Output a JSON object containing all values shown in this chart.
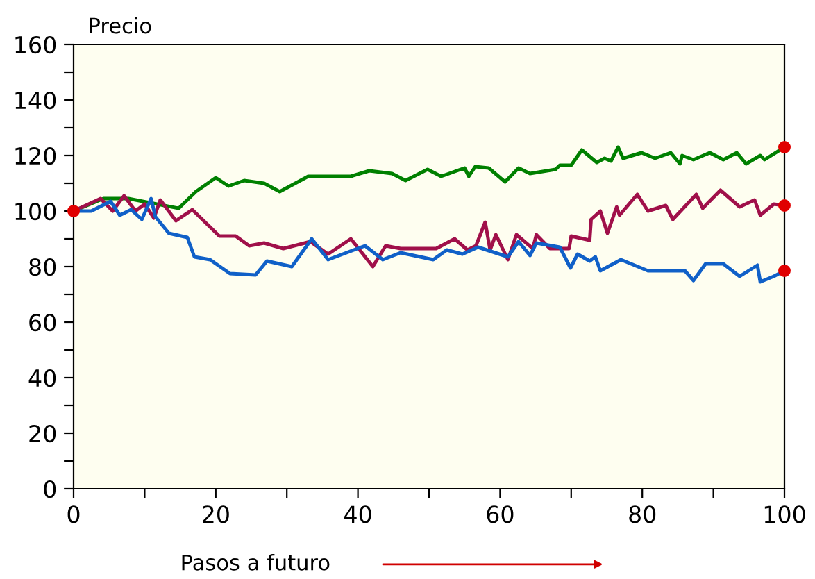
{
  "chart_data": {
    "type": "line",
    "ylabel": "Precio",
    "xlabel": "Pasos a futuro",
    "xlim": [
      0,
      100
    ],
    "ylim": [
      0,
      160
    ],
    "xticks": [
      0,
      {
        "value": 10,
        "label": null
      },
      20,
      {
        "value": 30,
        "label": null
      },
      40,
      {
        "value": 50,
        "label": null
      },
      60,
      {
        "value": 70,
        "label": null
      },
      80,
      {
        "value": 90,
        "label": null
      },
      100
    ],
    "yticks": [
      0,
      {
        "value": 10,
        "label": null
      },
      20,
      {
        "value": 30,
        "label": null
      },
      40,
      {
        "value": 50,
        "label": null
      },
      60,
      {
        "value": 70,
        "label": null
      },
      80,
      {
        "value": 90,
        "label": null
      },
      100,
      {
        "value": 110,
        "label": null
      },
      120,
      {
        "value": 130,
        "label": null
      },
      140,
      {
        "value": 150,
        "label": null
      },
      160
    ],
    "grid": false,
    "marker": "none",
    "line_style": "solid",
    "series": [
      {
        "color": "#008000",
        "x": [
          0,
          4.2,
          7.7,
          14.8,
          17.2,
          20,
          21.8,
          24,
          26.8,
          29,
          33,
          39,
          41.6,
          44.8,
          46.7,
          49.8,
          51.7,
          55,
          55.6,
          56.5,
          58.4,
          60.7,
          62.6,
          64.2,
          67.8,
          68.4,
          70,
          71.5,
          73.6,
          74.7,
          75.6,
          76.6,
          77.3,
          79.9,
          81.8,
          84,
          85.3,
          85.6,
          87.2,
          89.5,
          91.4,
          93.3,
          94.6,
          96.6,
          97.2,
          100
        ],
        "values": [
          100,
          104.5,
          104.5,
          101,
          107,
          112,
          109,
          111,
          110,
          107,
          112.5,
          112.5,
          114.5,
          113.5,
          111,
          115,
          112.5,
          115.5,
          112.5,
          116,
          115.5,
          110.5,
          115.5,
          113.5,
          115,
          116.5,
          116.5,
          122,
          117.5,
          119,
          118,
          123,
          119,
          121,
          119,
          121,
          117,
          120,
          118.5,
          121,
          118.5,
          121,
          117,
          120,
          118.5,
          123
        ]
      },
      {
        "color": "#a0104a",
        "x": [
          0,
          3.8,
          5.5,
          7.1,
          8.7,
          10,
          11.3,
          12.2,
          14.4,
          16.7,
          20.5,
          22.8,
          24.7,
          26.8,
          29.5,
          33.3,
          35.8,
          39,
          42.1,
          43.9,
          46,
          51,
          53.6,
          55.4,
          56.6,
          57.9,
          58.6,
          59.4,
          61.1,
          62.3,
          64.6,
          65.1,
          67,
          69.7,
          70,
          72.6,
          72.8,
          74.1,
          75.1,
          76.4,
          76.8,
          79.3,
          80.8,
          83.3,
          84.3,
          87.6,
          88.5,
          91,
          93.7,
          95.8,
          96.6,
          98.5,
          100
        ],
        "values": [
          100,
          104.5,
          100,
          105.5,
          100,
          102.5,
          97.5,
          104,
          96.5,
          100.5,
          91,
          91,
          87.5,
          88.5,
          86.5,
          89,
          84.5,
          90,
          80,
          87.5,
          86.5,
          86.5,
          90,
          86,
          87.5,
          96,
          86,
          91.5,
          82.5,
          91.5,
          86.5,
          91.5,
          86.5,
          86.5,
          91,
          89.5,
          97,
          100,
          92,
          101.5,
          98.5,
          106,
          100,
          102,
          97,
          106,
          101,
          107.5,
          101.5,
          104,
          98.5,
          102.5,
          102
        ]
      },
      {
        "color": "#1060c8",
        "x": [
          0,
          2.5,
          5.2,
          6.5,
          8.1,
          9.6,
          10.9,
          11.5,
          13.4,
          16,
          17,
          19.2,
          22,
          25.6,
          27.2,
          30.7,
          33.5,
          35.8,
          41,
          43.5,
          46,
          50.6,
          52.5,
          54.7,
          56.9,
          61.1,
          62.6,
          64.2,
          65.1,
          68.4,
          69.9,
          70.9,
          72.6,
          73.4,
          74.1,
          77,
          80.8,
          86,
          87.2,
          88.9,
          91.4,
          93.7,
          96.2,
          96.6,
          98.5,
          100
        ],
        "values": [
          100,
          100,
          103.5,
          98.5,
          100.5,
          97,
          104.5,
          98,
          92,
          90.5,
          83.5,
          82.5,
          77.5,
          77,
          82,
          80,
          90,
          82.5,
          87.5,
          82.5,
          85,
          82.5,
          86,
          84.5,
          87,
          83.5,
          89,
          84,
          88.5,
          87,
          79.5,
          84.5,
          82,
          83.5,
          78.5,
          82.5,
          78.5,
          78.5,
          75,
          81,
          81,
          76.5,
          80.5,
          74.5,
          76.5,
          78.5
        ]
      },
      {
        "type": "scatter",
        "color": "#e00000",
        "marker": "circle",
        "x": [
          0,
          100,
          100,
          100
        ],
        "values": [
          100,
          123,
          102,
          78.5
        ]
      }
    ]
  }
}
